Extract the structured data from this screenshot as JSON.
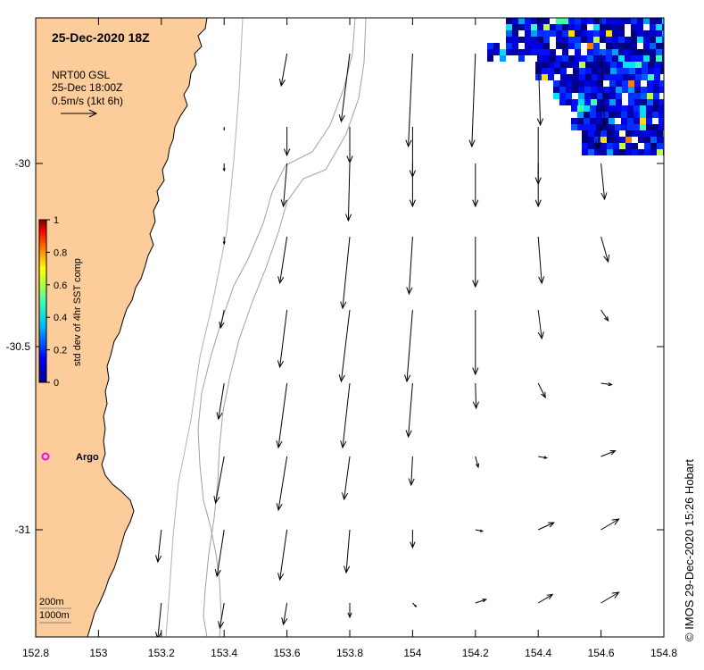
{
  "title": "25-Dec-2020 18Z",
  "legend": {
    "line1": "NRT00 GSL",
    "line2": "25-Dec 18:00Z",
    "line3": "0.5m/s (1kt 6h)"
  },
  "colorbar": {
    "label": "std dev of 4hr SST comp",
    "ticks": [
      "0",
      "0.2",
      "0.4",
      "0.6",
      "0.8",
      "1"
    ]
  },
  "argo_label": "Argo",
  "contour_labels": [
    "200m",
    "1000m"
  ],
  "credit": "© IMOS 29-Dec-2020 15:26 Hobart",
  "x_ticks": [
    "152.8",
    "153",
    "153.2",
    "153.4",
    "153.6",
    "153.8",
    "154",
    "154.2",
    "154.4",
    "154.6",
    "154.8"
  ],
  "y_ticks": [
    "-30",
    "-30.5",
    "-31"
  ],
  "colors": {
    "land": "#fccc9a",
    "argo": "#ff00ff",
    "arrow": "#000000",
    "contour": "#a0a0a0"
  },
  "chart_data": {
    "type": "vector-field",
    "xlim": [
      152.8,
      154.8
    ],
    "ylim": [
      -31.3,
      -29.6
    ],
    "arrows": [
      {
        "lon": 153.6,
        "lat": -29.7,
        "u": -0.08,
        "v": -0.45
      },
      {
        "lon": 153.8,
        "lat": -29.7,
        "u": -0.12,
        "v": -0.95
      },
      {
        "lon": 154.0,
        "lat": -29.7,
        "u": -0.06,
        "v": -1.3
      },
      {
        "lon": 154.2,
        "lat": -29.7,
        "u": -0.05,
        "v": -1.3
      },
      {
        "lon": 154.4,
        "lat": -29.7,
        "u": 0.03,
        "v": -1.0
      },
      {
        "lon": 154.6,
        "lat": -29.7,
        "u": 0.05,
        "v": -1.0
      },
      {
        "lon": 154.8,
        "lat": -29.7,
        "u": 0.1,
        "v": -0.9
      },
      {
        "lon": 153.4,
        "lat": -29.9,
        "u": 0.0,
        "v": -0.04
      },
      {
        "lon": 153.6,
        "lat": -29.9,
        "u": 0.0,
        "v": -0.4
      },
      {
        "lon": 153.8,
        "lat": -29.9,
        "u": 0.0,
        "v": -0.5
      },
      {
        "lon": 154.0,
        "lat": -29.9,
        "u": 0.0,
        "v": -0.7
      },
      {
        "lon": 154.4,
        "lat": -29.9,
        "u": 0.0,
        "v": -0.8
      },
      {
        "lon": 154.6,
        "lat": -29.9,
        "u": -0.05,
        "v": -0.3
      },
      {
        "lon": 153.4,
        "lat": -30.0,
        "u": 0.0,
        "v": -0.1
      },
      {
        "lon": 153.6,
        "lat": -30.0,
        "u": -0.05,
        "v": -0.6
      },
      {
        "lon": 153.8,
        "lat": -30.0,
        "u": -0.02,
        "v": -0.8
      },
      {
        "lon": 154.0,
        "lat": -30.0,
        "u": 0.0,
        "v": -0.6
      },
      {
        "lon": 154.2,
        "lat": -30.0,
        "u": 0.0,
        "v": -0.6
      },
      {
        "lon": 154.4,
        "lat": -30.0,
        "u": 0.0,
        "v": -0.6
      },
      {
        "lon": 154.6,
        "lat": -30.0,
        "u": 0.05,
        "v": -0.5
      },
      {
        "lon": 153.4,
        "lat": -30.2,
        "u": 0.0,
        "v": -0.1
      },
      {
        "lon": 153.6,
        "lat": -30.2,
        "u": -0.1,
        "v": -0.65
      },
      {
        "lon": 153.8,
        "lat": -30.2,
        "u": -0.1,
        "v": -1.0
      },
      {
        "lon": 154.0,
        "lat": -30.2,
        "u": -0.05,
        "v": -0.8
      },
      {
        "lon": 154.2,
        "lat": -30.2,
        "u": 0.0,
        "v": -0.7
      },
      {
        "lon": 154.4,
        "lat": -30.2,
        "u": 0.05,
        "v": -0.65
      },
      {
        "lon": 154.6,
        "lat": -30.2,
        "u": 0.1,
        "v": -0.35
      },
      {
        "lon": 153.4,
        "lat": -30.4,
        "u": -0.05,
        "v": -0.25
      },
      {
        "lon": 153.6,
        "lat": -30.4,
        "u": -0.1,
        "v": -0.8
      },
      {
        "lon": 153.8,
        "lat": -30.4,
        "u": -0.12,
        "v": -1.0
      },
      {
        "lon": 154.0,
        "lat": -30.4,
        "u": -0.08,
        "v": -1.0
      },
      {
        "lon": 154.2,
        "lat": -30.4,
        "u": 0.0,
        "v": -0.9
      },
      {
        "lon": 154.4,
        "lat": -30.4,
        "u": 0.05,
        "v": -0.4
      },
      {
        "lon": 154.6,
        "lat": -30.4,
        "u": 0.1,
        "v": -0.15
      },
      {
        "lon": 153.4,
        "lat": -30.6,
        "u": -0.08,
        "v": -0.5
      },
      {
        "lon": 153.6,
        "lat": -30.6,
        "u": -0.12,
        "v": -0.9
      },
      {
        "lon": 153.8,
        "lat": -30.6,
        "u": -0.1,
        "v": -0.9
      },
      {
        "lon": 154.0,
        "lat": -30.6,
        "u": -0.06,
        "v": -0.75
      },
      {
        "lon": 154.2,
        "lat": -30.6,
        "u": 0.01,
        "v": -0.35
      },
      {
        "lon": 154.4,
        "lat": -30.6,
        "u": 0.1,
        "v": -0.2
      },
      {
        "lon": 154.6,
        "lat": -30.6,
        "u": 0.15,
        "v": -0.02
      },
      {
        "lon": 153.4,
        "lat": -30.8,
        "u": -0.12,
        "v": -0.65
      },
      {
        "lon": 153.6,
        "lat": -30.8,
        "u": -0.12,
        "v": -0.75
      },
      {
        "lon": 153.8,
        "lat": -30.8,
        "u": -0.08,
        "v": -0.6
      },
      {
        "lon": 154.0,
        "lat": -30.8,
        "u": -0.02,
        "v": -0.4
      },
      {
        "lon": 154.2,
        "lat": -30.8,
        "u": 0.04,
        "v": -0.15
      },
      {
        "lon": 154.4,
        "lat": -30.8,
        "u": 0.12,
        "v": -0.02
      },
      {
        "lon": 154.6,
        "lat": -30.8,
        "u": 0.2,
        "v": 0.08
      },
      {
        "lon": 153.4,
        "lat": -31.0,
        "u": -0.1,
        "v": -0.65
      },
      {
        "lon": 153.6,
        "lat": -31.0,
        "u": -0.1,
        "v": -0.7
      },
      {
        "lon": 153.8,
        "lat": -31.0,
        "u": -0.05,
        "v": -0.6
      },
      {
        "lon": 154.0,
        "lat": -31.0,
        "u": 0.0,
        "v": -0.25
      },
      {
        "lon": 154.2,
        "lat": -31.0,
        "u": 0.1,
        "v": -0.02
      },
      {
        "lon": 154.4,
        "lat": -31.0,
        "u": 0.22,
        "v": 0.1
      },
      {
        "lon": 154.6,
        "lat": -31.0,
        "u": 0.25,
        "v": 0.15
      },
      {
        "lon": 153.2,
        "lat": -31.0,
        "u": -0.05,
        "v": -0.45
      },
      {
        "lon": 153.2,
        "lat": -31.2,
        "u": -0.05,
        "v": -0.5
      },
      {
        "lon": 153.4,
        "lat": -31.2,
        "u": -0.06,
        "v": -0.35
      },
      {
        "lon": 153.6,
        "lat": -31.2,
        "u": -0.05,
        "v": -0.3
      },
      {
        "lon": 153.8,
        "lat": -31.2,
        "u": 0.0,
        "v": -0.2
      },
      {
        "lon": 154.0,
        "lat": -31.2,
        "u": 0.05,
        "v": -0.05
      },
      {
        "lon": 154.2,
        "lat": -31.2,
        "u": 0.15,
        "v": 0.05
      },
      {
        "lon": 154.4,
        "lat": -31.2,
        "u": 0.2,
        "v": 0.12
      },
      {
        "lon": 154.6,
        "lat": -31.2,
        "u": 0.25,
        "v": 0.15
      }
    ]
  }
}
